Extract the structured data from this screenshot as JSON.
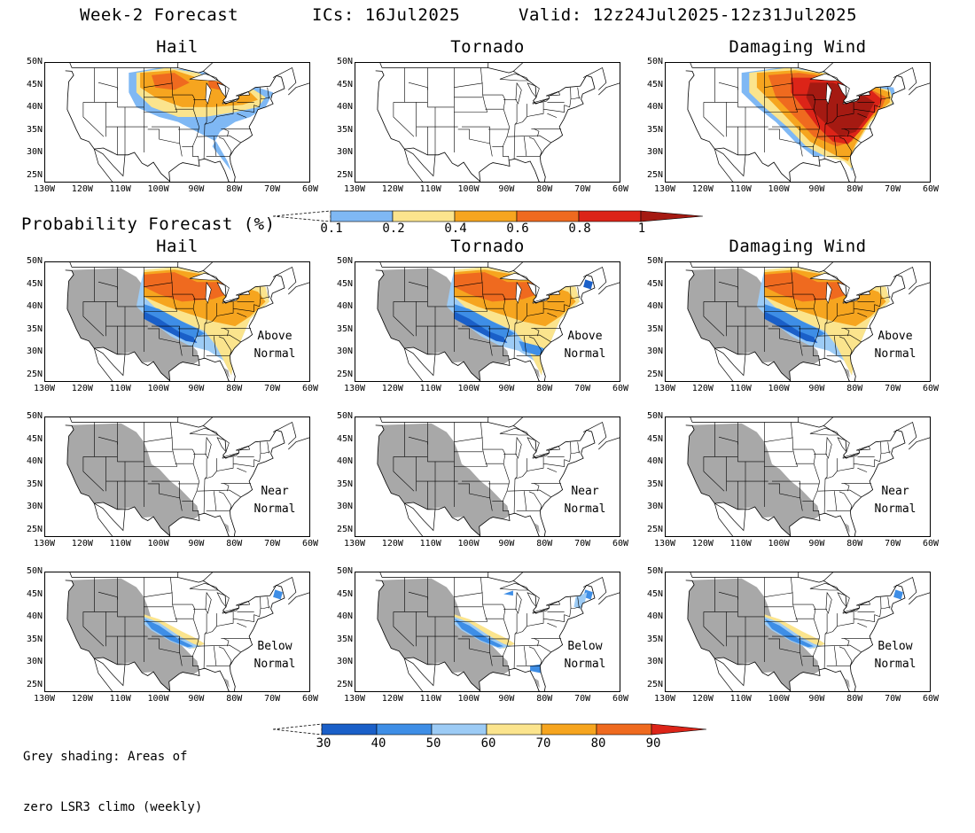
{
  "header": {
    "title": "Week-2 Forecast",
    "ics": "ICs: 16Jul2025",
    "valid": "Valid: 12z24Jul2025-12z31Jul2025"
  },
  "columns": [
    "Hail",
    "Tornado",
    "Damaging Wind"
  ],
  "lat_ticks": [
    "50N",
    "45N",
    "40N",
    "35N",
    "30N",
    "25N"
  ],
  "lon_ticks": [
    "130W",
    "120W",
    "110W",
    "100W",
    "90W",
    "80W",
    "70W",
    "60W"
  ],
  "probability_legend": {
    "title": "Probability Forecast (%)",
    "labels": [
      "0.1",
      "0.2",
      "0.4",
      "0.6",
      "0.8",
      "1"
    ],
    "colors": [
      "#7fb8f4",
      "#fbe48d",
      "#f6a51f",
      "#ef6a1f",
      "#dc2418",
      "#a51a12"
    ]
  },
  "anomaly_rows": [
    {
      "label_line1": "Above",
      "label_line2": "Normal"
    },
    {
      "label_line1": "Near",
      "label_line2": "Normal"
    },
    {
      "label_line1": "Below",
      "label_line2": "Normal"
    }
  ],
  "anomaly_legend": {
    "labels": [
      "30",
      "40",
      "50",
      "60",
      "70",
      "80",
      "90"
    ],
    "colors": [
      "#1a5fc8",
      "#3e8ee6",
      "#9ccbf5",
      "#fbe48d",
      "#f6a51f",
      "#ef6a1f",
      "#dc2418"
    ]
  },
  "note": {
    "line1": "Grey shading: Areas of",
    "line2": "zero LSR3 climo (weekly)"
  },
  "colors": {
    "grey_mask": "#a8a8a8"
  }
}
